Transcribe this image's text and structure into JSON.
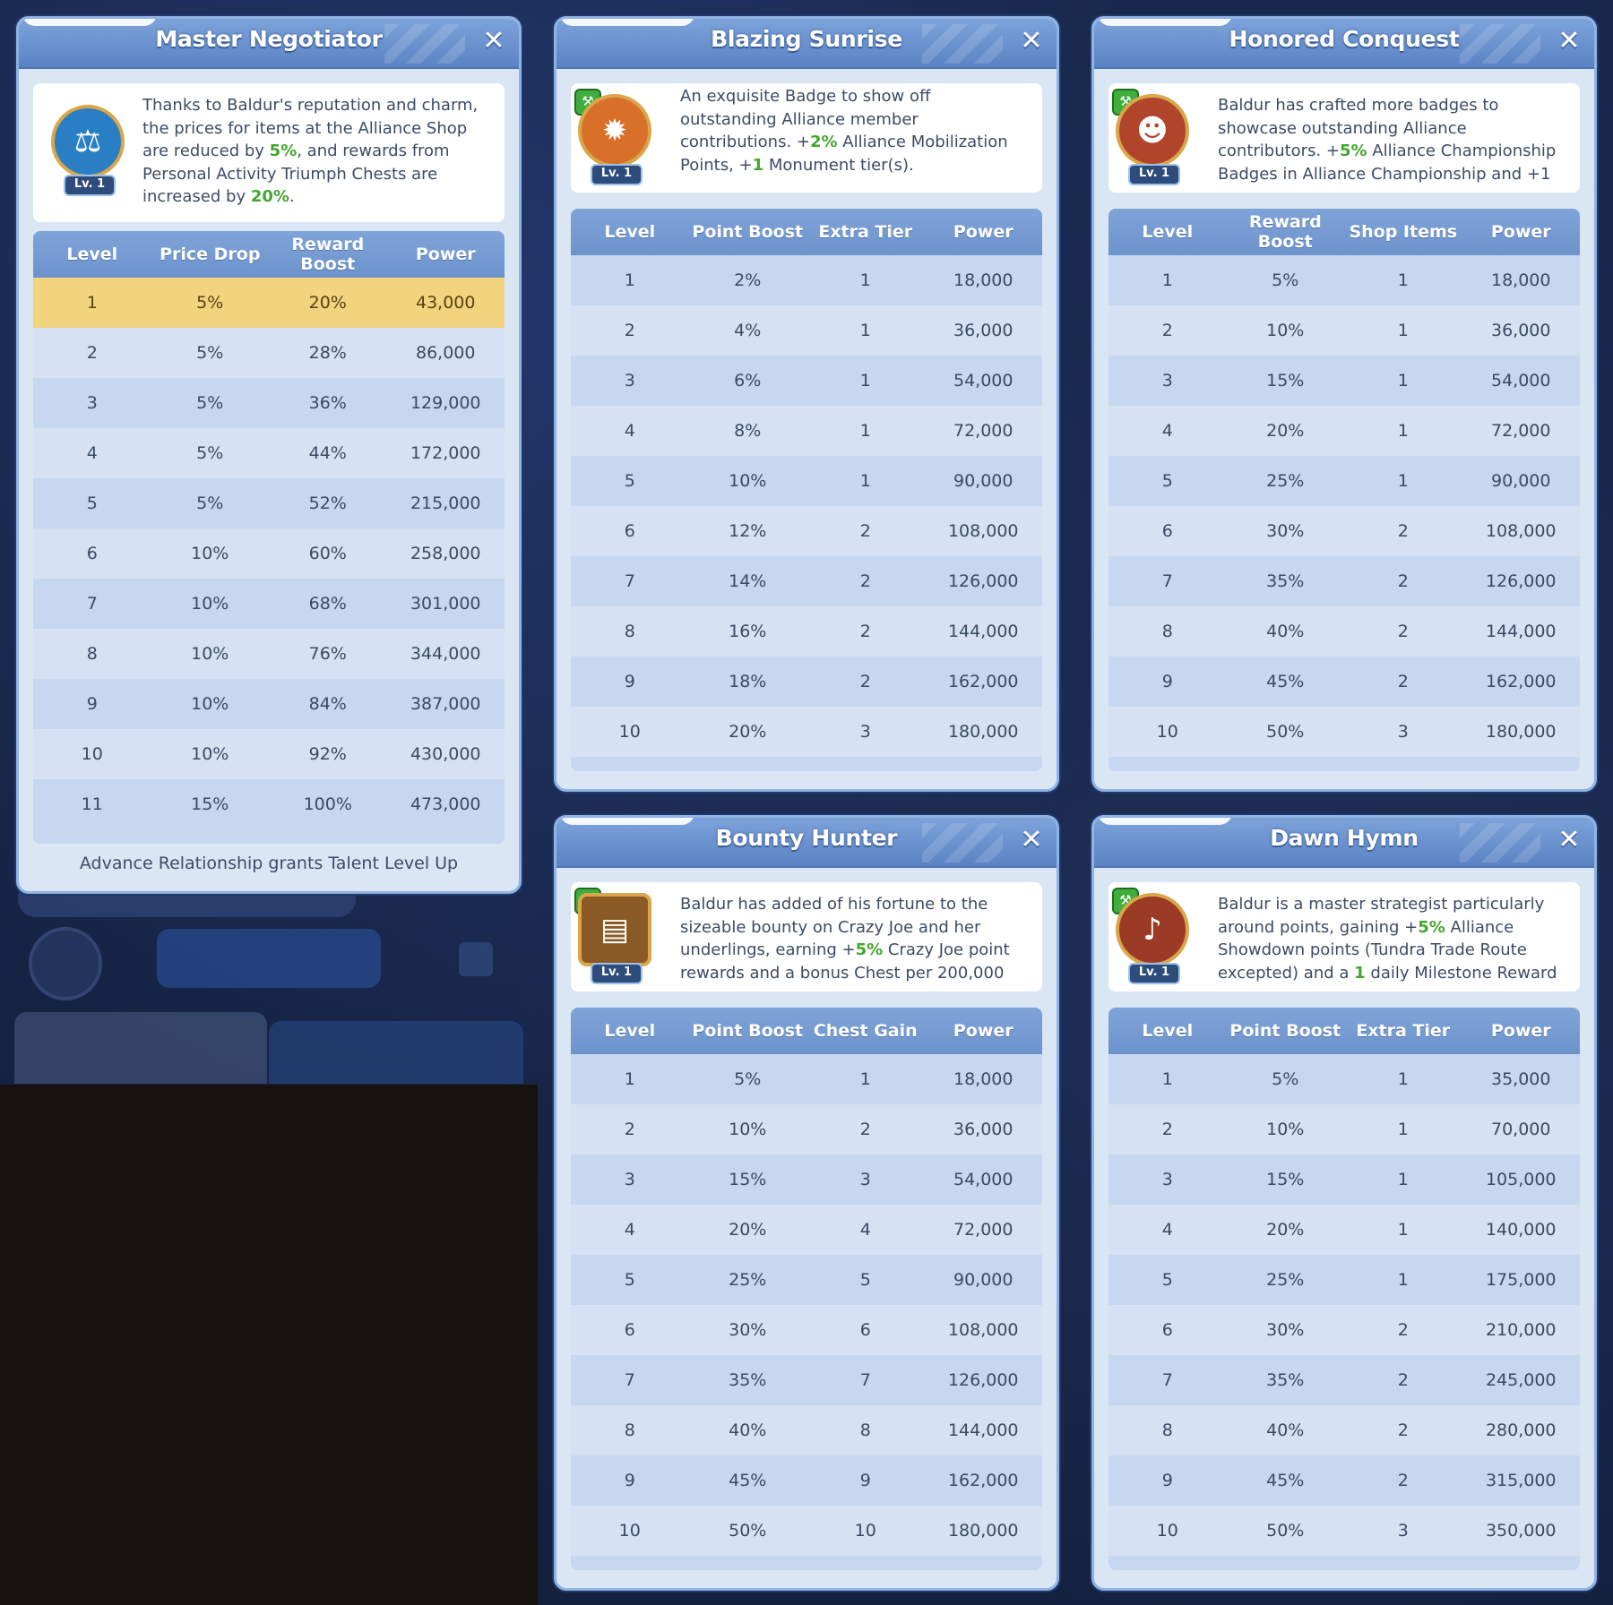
{
  "panels": [
    {
      "title": "Master Negotiator",
      "badge_level": "Lv. 1",
      "desc": [
        {
          "t": "Thanks to Baldur's reputation and charm, the prices for items at the Alliance Shop are reduced by "
        },
        {
          "t": "5%",
          "hl": true
        },
        {
          "t": ", and rewards from Personal Activity Triumph Chests are increased by "
        },
        {
          "t": "20%",
          "hl": true
        },
        {
          "t": "."
        }
      ],
      "columns": [
        "Level",
        "Price Drop",
        "Reward Boost",
        "Power"
      ],
      "rows": [
        [
          "1",
          "5%",
          "20%",
          "43,000"
        ],
        [
          "2",
          "5%",
          "28%",
          "86,000"
        ],
        [
          "3",
          "5%",
          "36%",
          "129,000"
        ],
        [
          "4",
          "5%",
          "44%",
          "172,000"
        ],
        [
          "5",
          "5%",
          "52%",
          "215,000"
        ],
        [
          "6",
          "10%",
          "60%",
          "258,000"
        ],
        [
          "7",
          "10%",
          "68%",
          "301,000"
        ],
        [
          "8",
          "10%",
          "76%",
          "344,000"
        ],
        [
          "9",
          "10%",
          "84%",
          "387,000"
        ],
        [
          "10",
          "10%",
          "92%",
          "430,000"
        ],
        [
          "11",
          "15%",
          "100%",
          "473,000"
        ]
      ],
      "current_row": 0,
      "footer": "Advance Relationship grants Talent Level Up",
      "icon": "scales-icon",
      "color": "#2a7ec4"
    },
    {
      "title": "Blazing Sunrise",
      "badge_level": "Lv. 1",
      "desc": [
        {
          "t": "An exquisite Badge to show off outstanding Alliance member contributions. +"
        },
        {
          "t": "2%",
          "hl": true
        },
        {
          "t": " Alliance Mobilization Points, +"
        },
        {
          "t": "1",
          "hl": true
        },
        {
          "t": " Monument tier(s)."
        }
      ],
      "columns": [
        "Level",
        "Point Boost",
        "Extra Tier",
        "Power"
      ],
      "rows": [
        [
          "1",
          "2%",
          "1",
          "18,000"
        ],
        [
          "2",
          "4%",
          "1",
          "36,000"
        ],
        [
          "3",
          "6%",
          "1",
          "54,000"
        ],
        [
          "4",
          "8%",
          "1",
          "72,000"
        ],
        [
          "5",
          "10%",
          "1",
          "90,000"
        ],
        [
          "6",
          "12%",
          "2",
          "108,000"
        ],
        [
          "7",
          "14%",
          "2",
          "126,000"
        ],
        [
          "8",
          "16%",
          "2",
          "144,000"
        ],
        [
          "9",
          "18%",
          "2",
          "162,000"
        ],
        [
          "10",
          "20%",
          "3",
          "180,000"
        ]
      ],
      "icon": "medal-icon",
      "color": "#d9702a"
    },
    {
      "title": "Honored Conquest",
      "badge_level": "Lv. 1",
      "desc": [
        {
          "t": "Baldur has crafted more badges to showcase outstanding Alliance contributors. +"
        },
        {
          "t": "5%",
          "hl": true
        },
        {
          "t": " Alliance Championship Badges in Alliance Championship and +1"
        }
      ],
      "columns": [
        "Level",
        "Reward Boost",
        "Shop Items",
        "Power"
      ],
      "rows": [
        [
          "1",
          "5%",
          "1",
          "18,000"
        ],
        [
          "2",
          "10%",
          "1",
          "36,000"
        ],
        [
          "3",
          "15%",
          "1",
          "54,000"
        ],
        [
          "4",
          "20%",
          "1",
          "72,000"
        ],
        [
          "5",
          "25%",
          "1",
          "90,000"
        ],
        [
          "6",
          "30%",
          "2",
          "108,000"
        ],
        [
          "7",
          "35%",
          "2",
          "126,000"
        ],
        [
          "8",
          "40%",
          "2",
          "144,000"
        ],
        [
          "9",
          "45%",
          "2",
          "162,000"
        ],
        [
          "10",
          "50%",
          "3",
          "180,000"
        ]
      ],
      "icon": "hero-portrait-icon",
      "color": "#b0452c"
    },
    {
      "title": "Bounty Hunter",
      "badge_level": "Lv. 1",
      "desc": [
        {
          "t": "Baldur has added of his fortune to the sizeable bounty on Crazy Joe and her underlings, earning +"
        },
        {
          "t": "5%",
          "hl": true
        },
        {
          "t": " Crazy Joe point rewards and a bonus Chest per 200,000"
        }
      ],
      "columns": [
        "Level",
        "Point Boost",
        "Chest Gain",
        "Power"
      ],
      "rows": [
        [
          "1",
          "5%",
          "1",
          "18,000"
        ],
        [
          "2",
          "10%",
          "2",
          "36,000"
        ],
        [
          "3",
          "15%",
          "3",
          "54,000"
        ],
        [
          "4",
          "20%",
          "4",
          "72,000"
        ],
        [
          "5",
          "25%",
          "5",
          "90,000"
        ],
        [
          "6",
          "30%",
          "6",
          "108,000"
        ],
        [
          "7",
          "35%",
          "7",
          "126,000"
        ],
        [
          "8",
          "40%",
          "8",
          "144,000"
        ],
        [
          "9",
          "45%",
          "9",
          "162,000"
        ],
        [
          "10",
          "50%",
          "10",
          "180,000"
        ]
      ],
      "icon": "wanted-poster-icon",
      "color": "#8a5a26"
    },
    {
      "title": "Dawn Hymn",
      "badge_level": "Lv. 1",
      "desc": [
        {
          "t": "Baldur is a master strategist particularly around points, gaining +"
        },
        {
          "t": "5%",
          "hl": true
        },
        {
          "t": " Alliance Showdown points (Tundra Trade Route excepted) and a "
        },
        {
          "t": "1",
          "hl": true
        },
        {
          "t": " daily Milestone Reward"
        }
      ],
      "columns": [
        "Level",
        "Point Boost",
        "Extra Tier",
        "Power"
      ],
      "rows": [
        [
          "1",
          "5%",
          "1",
          "35,000"
        ],
        [
          "2",
          "10%",
          "1",
          "70,000"
        ],
        [
          "3",
          "15%",
          "1",
          "105,000"
        ],
        [
          "4",
          "20%",
          "1",
          "140,000"
        ],
        [
          "5",
          "25%",
          "1",
          "175,000"
        ],
        [
          "6",
          "30%",
          "2",
          "210,000"
        ],
        [
          "7",
          "35%",
          "2",
          "245,000"
        ],
        [
          "8",
          "40%",
          "2",
          "280,000"
        ],
        [
          "9",
          "45%",
          "2",
          "315,000"
        ],
        [
          "10",
          "50%",
          "3",
          "350,000"
        ]
      ],
      "icon": "horn-player-icon",
      "color": "#9b3a25"
    }
  ]
}
